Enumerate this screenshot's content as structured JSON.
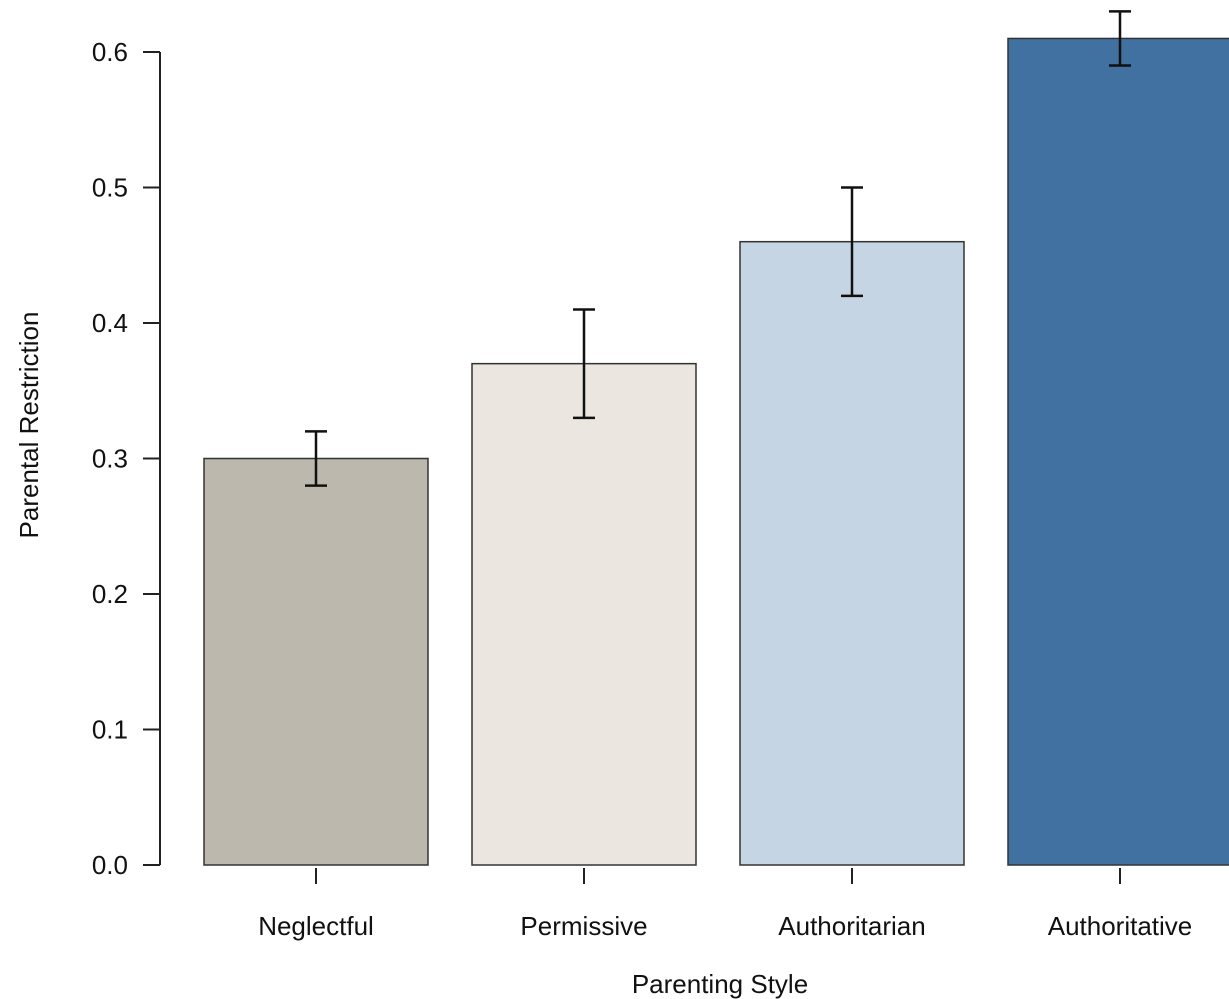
{
  "chart_data": {
    "type": "bar",
    "xlabel": "Parenting Style",
    "ylabel": "Parental Restriction",
    "ylim": [
      0,
      0.6
    ],
    "yticks": [
      "0.0",
      "0.1",
      "0.2",
      "0.3",
      "0.4",
      "0.5",
      "0.6"
    ],
    "categories": [
      "Neglectful",
      "Permissive",
      "Authoritarian",
      "Authoritative"
    ],
    "values": [
      0.3,
      0.37,
      0.46,
      0.61
    ],
    "error_low": [
      0.28,
      0.33,
      0.42,
      0.59
    ],
    "error_high": [
      0.32,
      0.41,
      0.5,
      0.63
    ],
    "colors": [
      "#bcb8ad",
      "#ebe6e0",
      "#c6d5e3",
      "#4171a0"
    ],
    "grid": false
  }
}
